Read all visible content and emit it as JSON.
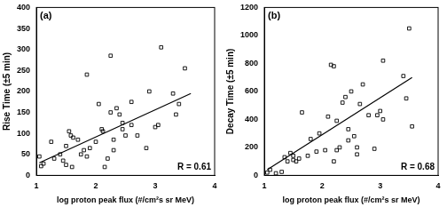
{
  "chart_data": [
    {
      "type": "scatter",
      "title": "(a)",
      "annotation": "R = 0.61",
      "x_label": "log proton peak flux (#/cm²s sr MeV)",
      "y_label": "Rise Time (±5 min)",
      "xlim": [
        1,
        4
      ],
      "xticks": [
        1,
        2,
        3,
        4
      ],
      "ylim": [
        0,
        400
      ],
      "yticks": [
        0,
        50,
        100,
        150,
        200,
        250,
        300,
        350,
        400
      ],
      "grid": false,
      "series": [
        {
          "type": "scatter",
          "marker": "square",
          "color": "#000000",
          "x": [
            1.05,
            1.08,
            1.12,
            1.25,
            1.3,
            1.4,
            1.45,
            1.5,
            1.5,
            1.55,
            1.58,
            1.62,
            1.6,
            1.7,
            1.75,
            1.8,
            1.85,
            1.85,
            1.9,
            2.0,
            2.05,
            2.1,
            2.12,
            2.15,
            2.2,
            2.25,
            2.25,
            2.3,
            2.3,
            2.35,
            2.4,
            2.45,
            2.45,
            2.5,
            2.6,
            2.6,
            2.7,
            2.85,
            2.9,
            3.0,
            3.05,
            3.1,
            3.3,
            3.35,
            3.4,
            3.5
          ],
          "values": [
            45,
            22,
            28,
            80,
            40,
            50,
            35,
            25,
            70,
            105,
            95,
            90,
            20,
            85,
            50,
            60,
            240,
            45,
            65,
            80,
            170,
            110,
            105,
            20,
            40,
            285,
            150,
            60,
            85,
            160,
            145,
            110,
            125,
            95,
            175,
            120,
            95,
            65,
            200,
            115,
            120,
            305,
            195,
            145,
            170,
            255
          ]
        },
        {
          "type": "line",
          "line_style": "solid",
          "color": "#000000",
          "x": [
            1.05,
            3.6
          ],
          "values": [
            30,
            195
          ]
        }
      ]
    },
    {
      "type": "scatter",
      "title": "(b)",
      "annotation": "R = 0.68",
      "x_label": "log proton peak flux (#/cm²s sr MeV)",
      "y_label": "Decay Time (±5 min)",
      "xlim": [
        1,
        4
      ],
      "xticks": [
        1,
        2,
        3,
        4
      ],
      "ylim": [
        0,
        1200
      ],
      "yticks": [
        0,
        200,
        400,
        600,
        800,
        1000,
        1200
      ],
      "grid": false,
      "series": [
        {
          "type": "scatter",
          "marker": "square",
          "color": "#000000",
          "x": [
            1.05,
            1.1,
            1.2,
            1.3,
            1.35,
            1.4,
            1.45,
            1.5,
            1.5,
            1.55,
            1.6,
            1.65,
            1.75,
            1.8,
            1.9,
            1.95,
            2.05,
            2.1,
            2.15,
            2.2,
            2.2,
            2.25,
            2.25,
            2.3,
            2.35,
            2.4,
            2.45,
            2.45,
            2.5,
            2.55,
            2.6,
            2.6,
            2.65,
            2.7,
            2.8,
            2.9,
            2.95,
            3.0,
            3.05,
            3.05,
            3.4,
            3.45,
            3.5,
            3.55
          ],
          "values": [
            20,
            40,
            15,
            25,
            130,
            100,
            160,
            140,
            110,
            100,
            120,
            450,
            140,
            260,
            170,
            300,
            180,
            420,
            790,
            780,
            100,
            180,
            390,
            200,
            520,
            560,
            330,
            250,
            600,
            280,
            200,
            150,
            510,
            650,
            430,
            190,
            430,
            460,
            400,
            820,
            710,
            550,
            1050,
            350
          ]
        },
        {
          "type": "line",
          "line_style": "solid",
          "color": "#000000",
          "x": [
            1.05,
            3.55
          ],
          "values": [
            40,
            700
          ]
        }
      ]
    }
  ]
}
